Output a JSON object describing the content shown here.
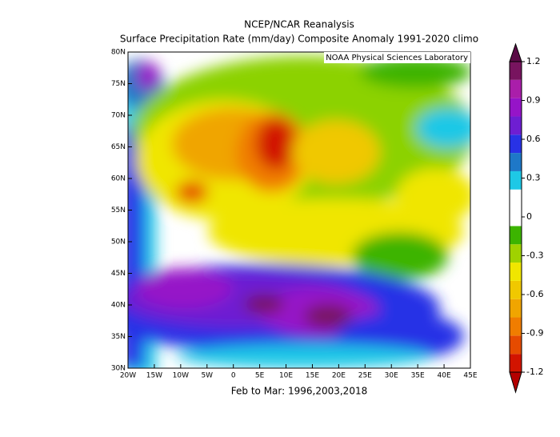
{
  "header": {
    "title": "NCEP/NCAR Reanalysis",
    "subtitle": "Surface Precipitation Rate (mm/day) Composite Anomaly 1991-2020 climo"
  },
  "map": {
    "credit": "NOAA Physical Sciences Laboratory",
    "lonlim": [
      -20,
      45
    ],
    "latlim": [
      30,
      80
    ],
    "lon_ticks": [
      {
        "value": -20,
        "label": "20W"
      },
      {
        "value": -15,
        "label": "15W"
      },
      {
        "value": -10,
        "label": "10W"
      },
      {
        "value": -5,
        "label": "5W"
      },
      0,
      {
        "value": 5,
        "label": "5E"
      },
      {
        "value": 10,
        "label": "10E"
      },
      {
        "value": 15,
        "label": "15E"
      },
      {
        "value": 20,
        "label": "20E"
      },
      {
        "value": 25,
        "label": "25E"
      },
      {
        "value": 30,
        "label": "30E"
      },
      {
        "value": 35,
        "label": "35E"
      },
      {
        "value": 40,
        "label": "40E"
      },
      {
        "value": 45,
        "label": "45E"
      }
    ],
    "lat_ticks": [
      {
        "value": 30,
        "label": "30N"
      },
      {
        "value": 35,
        "label": "35N"
      },
      {
        "value": 40,
        "label": "40N"
      },
      {
        "value": 45,
        "label": "45N"
      },
      {
        "value": 50,
        "label": "50N"
      },
      {
        "value": 55,
        "label": "55N"
      },
      {
        "value": 60,
        "label": "60N"
      },
      {
        "value": 65,
        "label": "65N"
      },
      {
        "value": 70,
        "label": "70N"
      },
      {
        "value": 75,
        "label": "75N"
      },
      {
        "value": 80,
        "label": "80N"
      }
    ]
  },
  "colorbar": {
    "ticks": [
      -1.2,
      -0.9,
      -0.6,
      -0.3,
      0,
      0.3,
      0.6,
      0.9,
      1.2
    ],
    "colors": [
      "#b40000",
      "#d21400",
      "#e64b00",
      "#f07d00",
      "#f0a500",
      "#f0c800",
      "#f0e600",
      "#a0d200",
      "#3cb400",
      "#ffffff",
      "#ffffff",
      "#1ec8e6",
      "#1e78c8",
      "#2832e6",
      "#6e1ed2",
      "#9614c8",
      "#aa1eaa",
      "#78145f",
      "#5a0a46"
    ]
  },
  "footer": "Feb to Mar: 1996,2003,2018"
}
